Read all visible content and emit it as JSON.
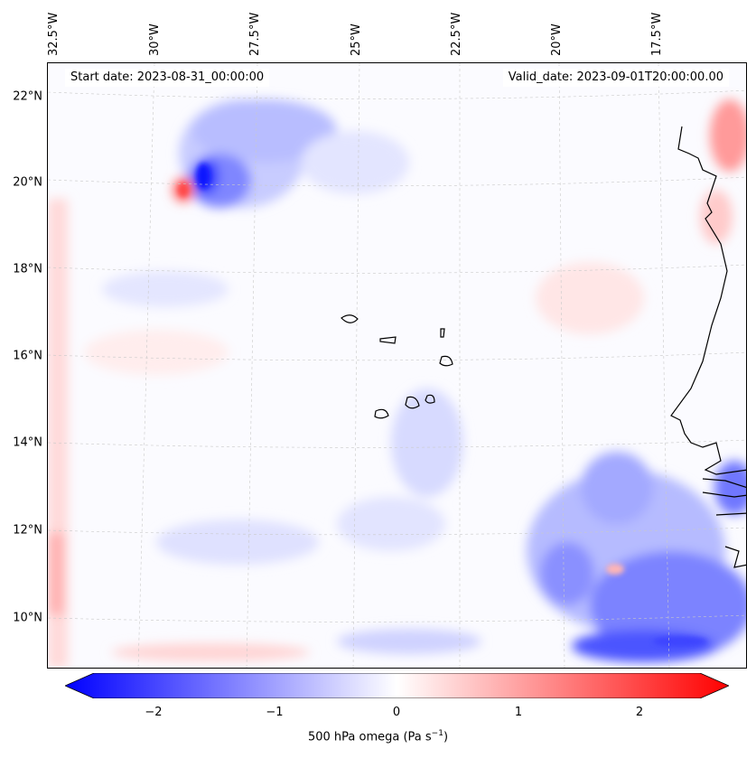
{
  "annotations": {
    "start_date": "Start date: 2023-08-31_00:00:00",
    "valid_date": "Valid_date: 2023-09-01T20:00:00.00"
  },
  "axes": {
    "latitude_labels": [
      "22°N",
      "20°N",
      "18°N",
      "16°N",
      "14°N",
      "12°N",
      "10°N"
    ],
    "longitude_labels": [
      "32.5°W",
      "30°W",
      "27.5°W",
      "25°W",
      "22.5°W",
      "20°W",
      "17.5°W"
    ]
  },
  "colorbar": {
    "label": "500 hPa omega (Pa s",
    "label_exponent": "−1",
    "label_close": ")",
    "tick_labels": [
      "−2",
      "−1",
      "0",
      "1",
      "2"
    ],
    "min": -2.5,
    "max": 2.5,
    "colormap": "bwr",
    "color_low": "#0000ff",
    "color_mid": "#ffffff",
    "color_high": "#ff0000"
  }
}
